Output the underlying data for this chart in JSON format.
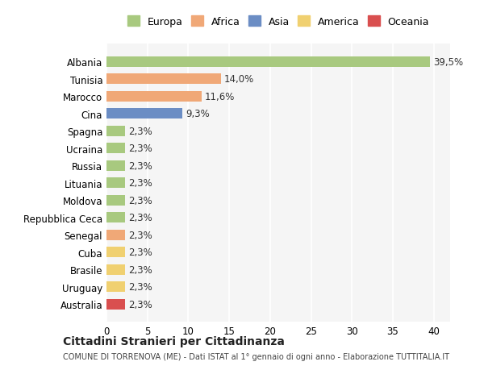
{
  "countries": [
    "Albania",
    "Tunisia",
    "Marocco",
    "Cina",
    "Spagna",
    "Ucraina",
    "Russia",
    "Lituania",
    "Moldova",
    "Repubblica Ceca",
    "Senegal",
    "Cuba",
    "Brasile",
    "Uruguay",
    "Australia"
  ],
  "values": [
    39.5,
    14.0,
    11.6,
    9.3,
    2.3,
    2.3,
    2.3,
    2.3,
    2.3,
    2.3,
    2.3,
    2.3,
    2.3,
    2.3,
    2.3
  ],
  "labels": [
    "39,5%",
    "14,0%",
    "11,6%",
    "9,3%",
    "2,3%",
    "2,3%",
    "2,3%",
    "2,3%",
    "2,3%",
    "2,3%",
    "2,3%",
    "2,3%",
    "2,3%",
    "2,3%",
    "2,3%"
  ],
  "continents": [
    "Europa",
    "Africa",
    "Africa",
    "Asia",
    "Europa",
    "Europa",
    "Europa",
    "Europa",
    "Europa",
    "Europa",
    "Africa",
    "America",
    "America",
    "America",
    "Oceania"
  ],
  "continent_colors": {
    "Europa": "#a8c97f",
    "Africa": "#f0a877",
    "Asia": "#6b8dc4",
    "America": "#f0d070",
    "Oceania": "#d94f4f"
  },
  "legend_order": [
    "Europa",
    "Africa",
    "Asia",
    "America",
    "Oceania"
  ],
  "title": "Cittadini Stranieri per Cittadinanza",
  "subtitle": "COMUNE DI TORRENOVA (ME) - Dati ISTAT al 1° gennaio di ogni anno - Elaborazione TUTTITALIA.IT",
  "xlim": [
    0,
    42
  ],
  "xticks": [
    0,
    5,
    10,
    15,
    20,
    25,
    30,
    35,
    40
  ],
  "background_color": "#ffffff",
  "plot_background": "#f5f5f5",
  "grid_color": "#ffffff"
}
